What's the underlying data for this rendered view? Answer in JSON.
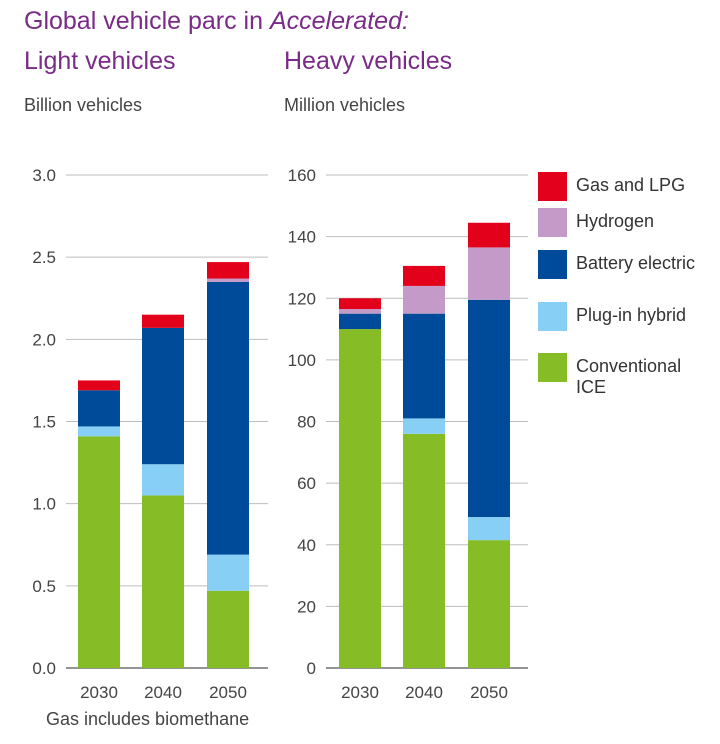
{
  "header": {
    "title_prefix": "Global vehicle parc in ",
    "title_emphasis": "Accelerated:",
    "left_subtitle": "Light vehicles",
    "right_subtitle": "Heavy vehicles",
    "left_unit": "Billion vehicles",
    "right_unit": "Million vehicles"
  },
  "footnote": "Gas includes biomethane",
  "legend": {
    "items": [
      {
        "label": "Gas and LPG",
        "color": "#e3001b"
      },
      {
        "label": "Hydrogen",
        "color": "#c49ac8"
      },
      {
        "label": "Battery electric",
        "color": "#004b99"
      },
      {
        "label": "Plug-in hybrid",
        "color": "#87cff5"
      },
      {
        "label": "Conventional ICE",
        "color": "#86bc25"
      }
    ]
  },
  "chart_data": [
    {
      "type": "bar",
      "stacked": true,
      "title": "Light vehicles",
      "ylabel": "Billion vehicles",
      "categories": [
        "2030",
        "2040",
        "2050"
      ],
      "ylim": [
        0,
        3.0
      ],
      "yticks": [
        "0.0",
        "0.5",
        "1.0",
        "1.5",
        "2.0",
        "2.5",
        "3.0"
      ],
      "grid": true,
      "series": [
        {
          "name": "Conventional ICE",
          "color": "#86bc25",
          "values": [
            1.41,
            1.05,
            0.47
          ]
        },
        {
          "name": "Plug-in hybrid",
          "color": "#87cff5",
          "values": [
            0.06,
            0.19,
            0.22
          ]
        },
        {
          "name": "Battery electric",
          "color": "#004b99",
          "values": [
            0.22,
            0.83,
            1.66
          ]
        },
        {
          "name": "Hydrogen",
          "color": "#c49ac8",
          "values": [
            0.0,
            0.0,
            0.02
          ]
        },
        {
          "name": "Gas and LPG",
          "color": "#e3001b",
          "values": [
            0.06,
            0.08,
            0.1
          ]
        }
      ]
    },
    {
      "type": "bar",
      "stacked": true,
      "title": "Heavy vehicles",
      "ylabel": "Million vehicles",
      "categories": [
        "2030",
        "2040",
        "2050"
      ],
      "ylim": [
        0,
        160
      ],
      "yticks": [
        "0",
        "20",
        "40",
        "60",
        "80",
        "100",
        "120",
        "140",
        "160"
      ],
      "grid": true,
      "series": [
        {
          "name": "Conventional ICE",
          "color": "#86bc25",
          "values": [
            110,
            76,
            41.5
          ]
        },
        {
          "name": "Plug-in hybrid",
          "color": "#87cff5",
          "values": [
            0,
            5,
            7.5
          ]
        },
        {
          "name": "Battery electric",
          "color": "#004b99",
          "values": [
            5,
            34,
            70.5
          ]
        },
        {
          "name": "Hydrogen",
          "color": "#c49ac8",
          "values": [
            1.5,
            9,
            17
          ]
        },
        {
          "name": "Gas and LPG",
          "color": "#e3001b",
          "values": [
            3.5,
            6.5,
            8
          ]
        }
      ]
    }
  ]
}
